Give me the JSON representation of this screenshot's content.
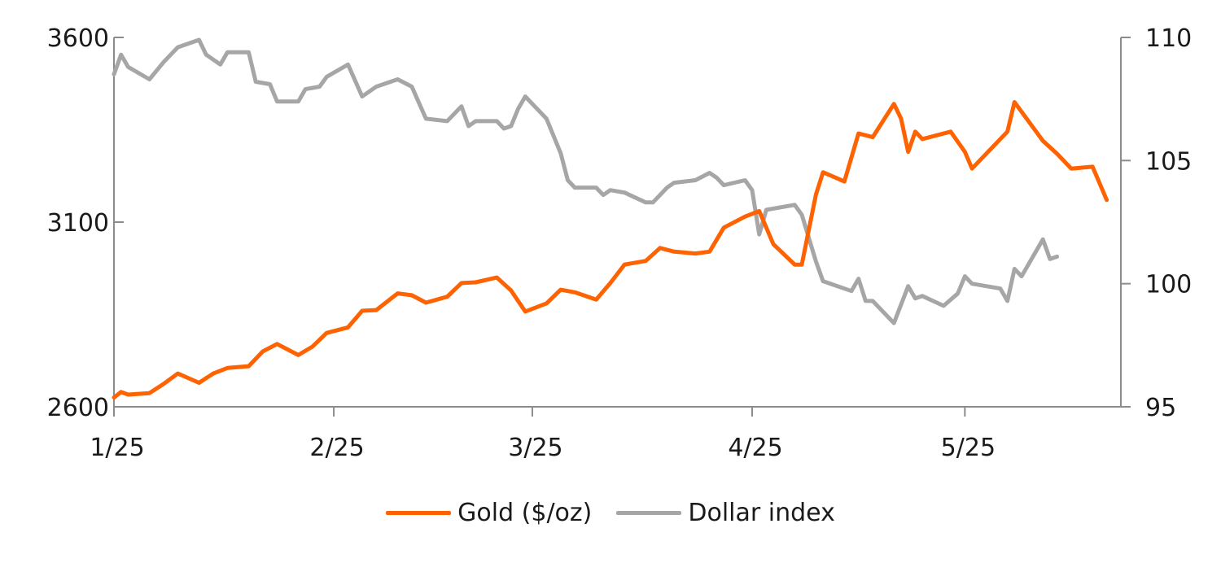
{
  "chart_data": {
    "type": "line",
    "title": "",
    "x_ticks": [
      "1/25",
      "2/25",
      "3/25",
      "4/25",
      "5/25"
    ],
    "x_tick_dates": [
      "2025-01-01",
      "2025-02-01",
      "2025-03-01",
      "2025-04-01",
      "2025-05-01"
    ],
    "x_range": [
      "2025-01-01",
      "2025-05-23"
    ],
    "y_left": {
      "range": [
        2600,
        3600
      ],
      "ticks": [
        2600,
        3100,
        3600
      ]
    },
    "y_right": {
      "range": [
        95,
        110
      ],
      "ticks": [
        95,
        100,
        105,
        110
      ]
    },
    "grid": false,
    "legend_position": "bottom",
    "series": [
      {
        "name": "Gold ($/oz)",
        "axis": "left",
        "color": "#ff6200",
        "points": [
          [
            "2025-01-01",
            2625
          ],
          [
            "2025-01-02",
            2640
          ],
          [
            "2025-01-03",
            2633
          ],
          [
            "2025-01-06",
            2637
          ],
          [
            "2025-01-08",
            2662
          ],
          [
            "2025-01-10",
            2690
          ],
          [
            "2025-01-13",
            2665
          ],
          [
            "2025-01-15",
            2690
          ],
          [
            "2025-01-17",
            2705
          ],
          [
            "2025-01-20",
            2710
          ],
          [
            "2025-01-22",
            2750
          ],
          [
            "2025-01-24",
            2770
          ],
          [
            "2025-01-27",
            2740
          ],
          [
            "2025-01-29",
            2763
          ],
          [
            "2025-01-31",
            2800
          ],
          [
            "2025-02-03",
            2815
          ],
          [
            "2025-02-05",
            2860
          ],
          [
            "2025-02-07",
            2862
          ],
          [
            "2025-02-10",
            2907
          ],
          [
            "2025-02-12",
            2902
          ],
          [
            "2025-02-14",
            2882
          ],
          [
            "2025-02-17",
            2898
          ],
          [
            "2025-02-19",
            2935
          ],
          [
            "2025-02-21",
            2937
          ],
          [
            "2025-02-24",
            2950
          ],
          [
            "2025-02-26",
            2915
          ],
          [
            "2025-02-28",
            2858
          ],
          [
            "2025-03-03",
            2880
          ],
          [
            "2025-03-05",
            2917
          ],
          [
            "2025-03-07",
            2910
          ],
          [
            "2025-03-10",
            2890
          ],
          [
            "2025-03-12",
            2935
          ],
          [
            "2025-03-14",
            2985
          ],
          [
            "2025-03-17",
            2995
          ],
          [
            "2025-03-19",
            3030
          ],
          [
            "2025-03-21",
            3020
          ],
          [
            "2025-03-24",
            3015
          ],
          [
            "2025-03-26",
            3020
          ],
          [
            "2025-03-28",
            3085
          ],
          [
            "2025-03-31",
            3115
          ],
          [
            "2025-04-02",
            3130
          ],
          [
            "2025-04-04",
            3040
          ],
          [
            "2025-04-07",
            2985
          ],
          [
            "2025-04-08",
            2985
          ],
          [
            "2025-04-10",
            3175
          ],
          [
            "2025-04-11",
            3235
          ],
          [
            "2025-04-14",
            3210
          ],
          [
            "2025-04-16",
            3340
          ],
          [
            "2025-04-18",
            3330
          ],
          [
            "2025-04-21",
            3420
          ],
          [
            "2025-04-22",
            3380
          ],
          [
            "2025-04-23",
            3290
          ],
          [
            "2025-04-24",
            3345
          ],
          [
            "2025-04-25",
            3325
          ],
          [
            "2025-04-29",
            3345
          ],
          [
            "2025-05-01",
            3290
          ],
          [
            "2025-05-02",
            3245
          ],
          [
            "2025-05-07",
            3345
          ],
          [
            "2025-05-08",
            3425
          ],
          [
            "2025-05-12",
            3320
          ],
          [
            "2025-05-14",
            3285
          ],
          [
            "2025-05-16",
            3245
          ],
          [
            "2025-05-19",
            3250
          ],
          [
            "2025-05-21",
            3160
          ]
        ]
      },
      {
        "name": "Dollar index",
        "axis": "right",
        "color": "#a6a6a6",
        "points": [
          [
            "2025-01-01",
            108.5
          ],
          [
            "2025-01-02",
            109.3
          ],
          [
            "2025-01-03",
            108.8
          ],
          [
            "2025-01-06",
            108.3
          ],
          [
            "2025-01-08",
            109.0
          ],
          [
            "2025-01-10",
            109.6
          ],
          [
            "2025-01-13",
            109.9
          ],
          [
            "2025-01-14",
            109.3
          ],
          [
            "2025-01-16",
            108.9
          ],
          [
            "2025-01-17",
            109.4
          ],
          [
            "2025-01-20",
            109.4
          ],
          [
            "2025-01-21",
            108.2
          ],
          [
            "2025-01-23",
            108.1
          ],
          [
            "2025-01-24",
            107.4
          ],
          [
            "2025-01-27",
            107.4
          ],
          [
            "2025-01-28",
            107.9
          ],
          [
            "2025-01-30",
            108.0
          ],
          [
            "2025-01-31",
            108.4
          ],
          [
            "2025-02-03",
            108.9
          ],
          [
            "2025-02-05",
            107.6
          ],
          [
            "2025-02-07",
            108.0
          ],
          [
            "2025-02-10",
            108.3
          ],
          [
            "2025-02-12",
            108.0
          ],
          [
            "2025-02-14",
            106.7
          ],
          [
            "2025-02-17",
            106.6
          ],
          [
            "2025-02-19",
            107.2
          ],
          [
            "2025-02-20",
            106.4
          ],
          [
            "2025-02-21",
            106.6
          ],
          [
            "2025-02-24",
            106.6
          ],
          [
            "2025-02-25",
            106.3
          ],
          [
            "2025-02-26",
            106.4
          ],
          [
            "2025-02-27",
            107.1
          ],
          [
            "2025-02-28",
            107.6
          ],
          [
            "2025-03-03",
            106.7
          ],
          [
            "2025-03-05",
            105.3
          ],
          [
            "2025-03-06",
            104.2
          ],
          [
            "2025-03-07",
            103.9
          ],
          [
            "2025-03-10",
            103.9
          ],
          [
            "2025-03-11",
            103.6
          ],
          [
            "2025-03-12",
            103.8
          ],
          [
            "2025-03-14",
            103.7
          ],
          [
            "2025-03-17",
            103.3
          ],
          [
            "2025-03-18",
            103.3
          ],
          [
            "2025-03-20",
            103.9
          ],
          [
            "2025-03-21",
            104.1
          ],
          [
            "2025-03-24",
            104.2
          ],
          [
            "2025-03-26",
            104.5
          ],
          [
            "2025-03-27",
            104.3
          ],
          [
            "2025-03-28",
            104.0
          ],
          [
            "2025-03-31",
            104.2
          ],
          [
            "2025-04-01",
            103.8
          ],
          [
            "2025-04-02",
            102.0
          ],
          [
            "2025-04-03",
            103.0
          ],
          [
            "2025-04-07",
            103.2
          ],
          [
            "2025-04-08",
            102.8
          ],
          [
            "2025-04-10",
            100.9
          ],
          [
            "2025-04-11",
            100.1
          ],
          [
            "2025-04-15",
            99.7
          ],
          [
            "2025-04-16",
            100.2
          ],
          [
            "2025-04-17",
            99.3
          ],
          [
            "2025-04-18",
            99.3
          ],
          [
            "2025-04-21",
            98.4
          ],
          [
            "2025-04-23",
            99.9
          ],
          [
            "2025-04-24",
            99.4
          ],
          [
            "2025-04-25",
            99.5
          ],
          [
            "2025-04-28",
            99.1
          ],
          [
            "2025-04-30",
            99.6
          ],
          [
            "2025-05-01",
            100.3
          ],
          [
            "2025-05-02",
            100.0
          ],
          [
            "2025-05-06",
            99.8
          ],
          [
            "2025-05-07",
            99.3
          ],
          [
            "2025-05-08",
            100.6
          ],
          [
            "2025-05-09",
            100.3
          ],
          [
            "2025-05-12",
            101.8
          ],
          [
            "2025-05-13",
            101.0
          ],
          [
            "2025-05-14",
            101.1
          ]
        ]
      }
    ]
  }
}
